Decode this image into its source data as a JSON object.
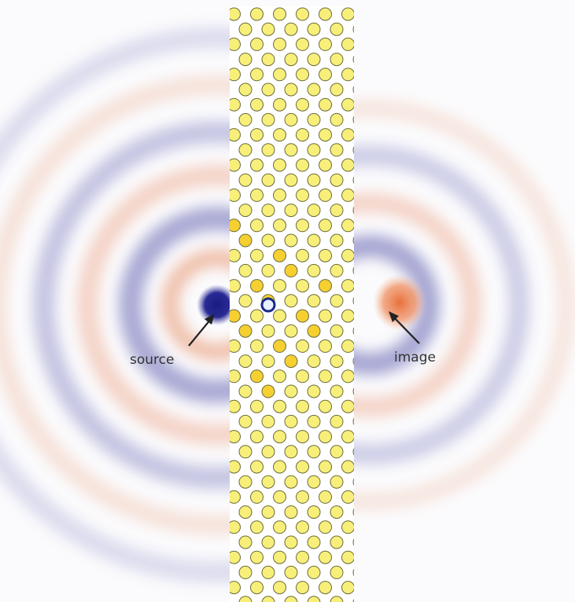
{
  "labels": {
    "source": "source",
    "image": "image"
  }
}
